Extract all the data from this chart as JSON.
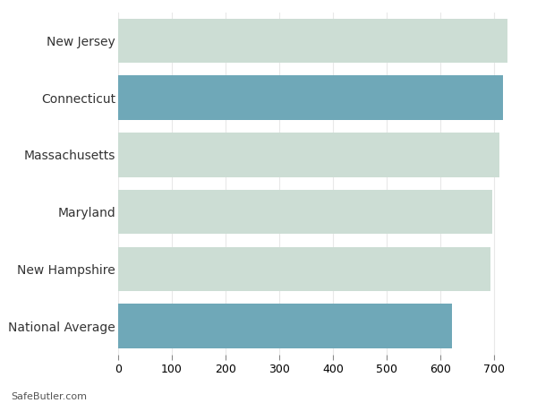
{
  "categories": [
    "New Jersey",
    "Connecticut",
    "Massachusetts",
    "Maryland",
    "New Hampshire",
    "National Average"
  ],
  "values": [
    725,
    716,
    710,
    697,
    693,
    621
  ],
  "bar_colors": [
    "#ccddd4",
    "#6fa8b8",
    "#ccddd4",
    "#ccddd4",
    "#ccddd4",
    "#6fa8b8"
  ],
  "background_color": "#ffffff",
  "grid_color": "#e8e8e8",
  "xlim": [
    0,
    750
  ],
  "xticks": [
    0,
    100,
    200,
    300,
    400,
    500,
    600,
    700
  ],
  "bar_height": 0.78,
  "ylabel_fontsize": 10,
  "xlabel_fontsize": 9,
  "footer_text": "SafeButler.com",
  "footer_fontsize": 8
}
